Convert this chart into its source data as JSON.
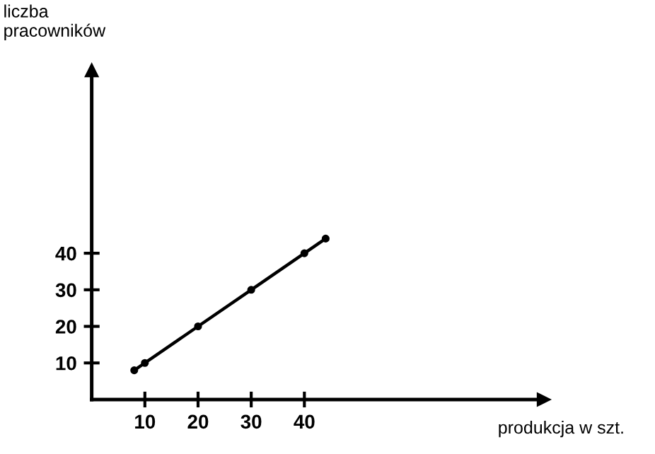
{
  "chart_data": {
    "type": "line",
    "xlabel": "produkcja w szt.",
    "ylabel": "liczba\npracowników",
    "x": [
      8,
      10,
      20,
      30,
      40,
      44
    ],
    "series": [
      {
        "color": "#000000",
        "values": [
          8,
          10,
          20,
          30,
          40,
          44
        ]
      }
    ],
    "xlim": [
      0,
      85
    ],
    "ylim": [
      0,
      90
    ],
    "xticks": [
      10,
      20,
      30,
      40
    ],
    "yticks": [
      10,
      20,
      30,
      40
    ],
    "marker": "circle",
    "line_style": "solid",
    "grid": false,
    "legend": false
  }
}
